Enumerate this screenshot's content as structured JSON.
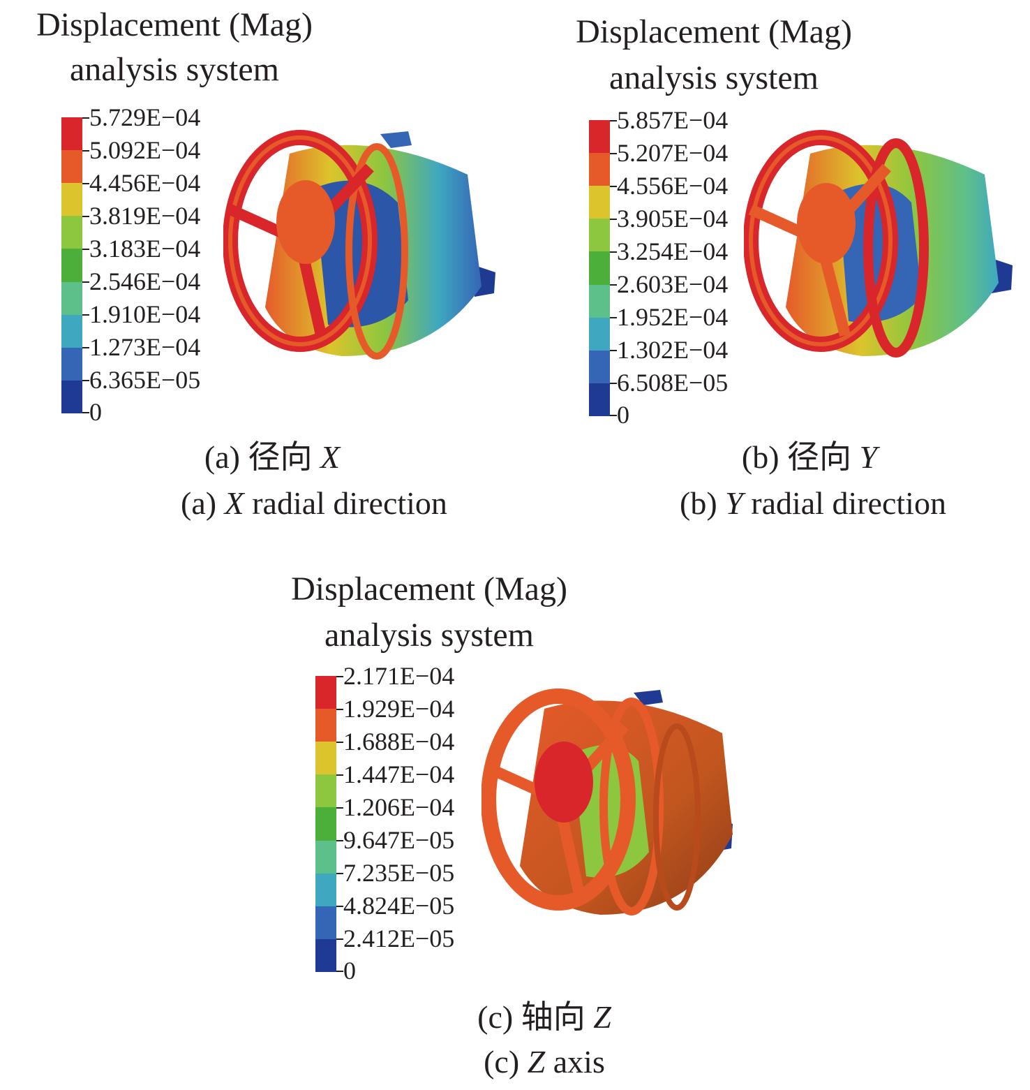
{
  "panels": [
    {
      "id": "a",
      "title_line1": "Displacement (Mag)",
      "title_line2": "analysis system",
      "legend": [
        "5.729E−04",
        "5.092E−04",
        "4.456E−04",
        "3.819E−04",
        "3.183E−04",
        "2.546E−04",
        "1.910E−04",
        "1.273E−04",
        "6.365E−05",
        "0"
      ],
      "caption_cn": {
        "prefix": "(a) 径向 ",
        "axis": "X"
      },
      "caption_en": {
        "prefix": "(a) ",
        "axis": "X",
        "suffix": " radial direction"
      }
    },
    {
      "id": "b",
      "title_line1": "Displacement (Mag)",
      "title_line2": "analysis system",
      "legend": [
        "5.857E−04",
        "5.207E−04",
        "4.556E−04",
        "3.905E−04",
        "3.254E−04",
        "2.603E−04",
        "1.952E−04",
        "1.302E−04",
        "6.508E−05",
        "0"
      ],
      "caption_cn": {
        "prefix": "(b) 径向 ",
        "axis": "Y"
      },
      "caption_en": {
        "prefix": "(b) ",
        "axis": "Y",
        "suffix": " radial direction"
      }
    },
    {
      "id": "c",
      "title_line1": "Displacement (Mag)",
      "title_line2": "analysis system",
      "legend": [
        "2.171E−04",
        "1.929E−04",
        "1.688E−04",
        "1.447E−04",
        "1.206E−04",
        "9.647E−05",
        "7.235E−05",
        "4.824E−05",
        "2.412E−05",
        "0"
      ],
      "caption_cn": {
        "prefix": "(c) 轴向 ",
        "axis": "Z"
      },
      "caption_en": {
        "prefix": "(c) ",
        "axis": "Z",
        "suffix": " axis"
      }
    }
  ],
  "colormap": [
    "#d8262b",
    "#e65a2a",
    "#dcc42c",
    "#8dc63f",
    "#4caf3a",
    "#5dbf8a",
    "#3fa8c0",
    "#3565b5",
    "#1f3a93"
  ]
}
